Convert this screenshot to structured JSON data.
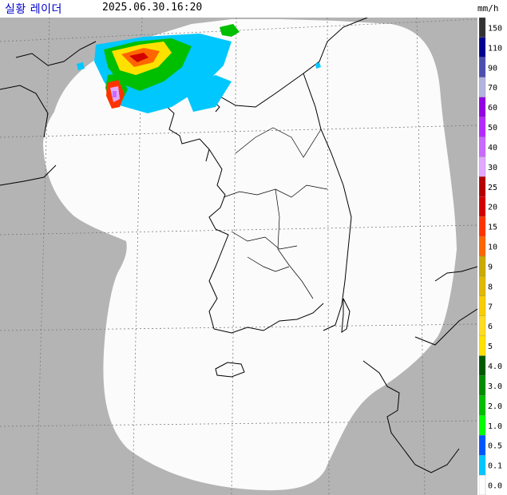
{
  "header": {
    "title": "실황 레이더",
    "timestamp": "2025.06.30.16:20",
    "unit": "mm/h"
  },
  "map": {
    "outside_color": "#b4b4b4",
    "coverage_color": "#fbfbfb",
    "grid_color": "#7a7a7a",
    "coast_color": "#000000"
  },
  "legend": {
    "items": [
      {
        "label": "150",
        "color": "#333333"
      },
      {
        "label": "110",
        "color": "#000390"
      },
      {
        "label": "90",
        "color": "#4c4eb1"
      },
      {
        "label": "70",
        "color": "#b3b4de"
      },
      {
        "label": "60",
        "color": "#9300e4"
      },
      {
        "label": "50",
        "color": "#b329ff"
      },
      {
        "label": "40",
        "color": "#c969ff"
      },
      {
        "label": "30",
        "color": "#e0a9ff"
      },
      {
        "label": "25",
        "color": "#b40000"
      },
      {
        "label": "20",
        "color": "#d20000"
      },
      {
        "label": "15",
        "color": "#ff3300"
      },
      {
        "label": "10",
        "color": "#ff6600"
      },
      {
        "label": "9",
        "color": "#ccaa00"
      },
      {
        "label": "8",
        "color": "#e0b900"
      },
      {
        "label": "7",
        "color": "#f9cd00"
      },
      {
        "label": "6",
        "color": "#ffdc1f"
      },
      {
        "label": "5",
        "color": "#ffe100"
      },
      {
        "label": "4.0",
        "color": "#005a00"
      },
      {
        "label": "3.0",
        "color": "#008c00"
      },
      {
        "label": "2.0",
        "color": "#00be00"
      },
      {
        "label": "1.0",
        "color": "#00ff00"
      },
      {
        "label": "0.5",
        "color": "#0055ff"
      },
      {
        "label": "0.1",
        "color": "#00c8ff"
      },
      {
        "label": "0.0",
        "color": "#ffffff"
      }
    ]
  }
}
